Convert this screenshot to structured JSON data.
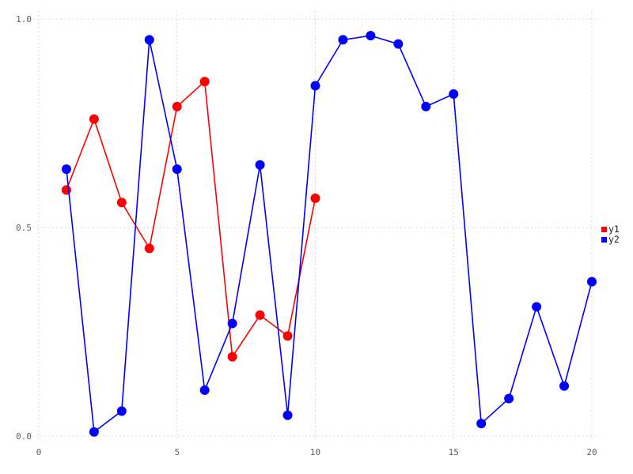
{
  "chart_data": {
    "type": "line",
    "title": "",
    "xlabel": "",
    "ylabel": "",
    "xlim": [
      0,
      20
    ],
    "ylim": [
      0.0,
      1.0
    ],
    "grid": true,
    "grid_style": "dotted",
    "legend_position": "right-outside",
    "x_ticks": [
      "0",
      "5",
      "10",
      "15",
      "20"
    ],
    "x_tick_values": [
      0,
      5,
      10,
      15,
      20
    ],
    "y_ticks": [
      "0.0",
      "0.5",
      "1.0"
    ],
    "y_tick_values": [
      0.0,
      0.5,
      1.0
    ],
    "series": [
      {
        "name": "y1",
        "color": "#ff0000",
        "x": [
          1,
          2,
          3,
          4,
          5,
          6,
          7,
          8,
          9,
          10
        ],
        "values": [
          0.59,
          0.76,
          0.56,
          0.45,
          0.79,
          0.85,
          0.19,
          0.29,
          0.24,
          0.57
        ]
      },
      {
        "name": "y2",
        "color": "#0000ff",
        "x": [
          1,
          2,
          3,
          4,
          5,
          6,
          7,
          8,
          9,
          10,
          11,
          12,
          13,
          14,
          15,
          16,
          17,
          18,
          19,
          20
        ],
        "values": [
          0.64,
          0.01,
          0.06,
          0.95,
          0.64,
          0.11,
          0.27,
          0.65,
          0.05,
          0.84,
          0.95,
          0.96,
          0.94,
          0.79,
          0.82,
          0.03,
          0.09,
          0.31,
          0.12,
          0.37
        ]
      }
    ],
    "legend": {
      "entries": [
        {
          "label": "y1",
          "color": "#ff0000"
        },
        {
          "label": "y2",
          "color": "#0000ff"
        }
      ]
    },
    "style": {
      "grid_color": "#d6d6e0",
      "tick_text_color": "#5f5f66",
      "legend_text_color": "#1a1a1a",
      "background": "#ffffff",
      "marker_radius": 6,
      "line_width": 1.6
    }
  }
}
